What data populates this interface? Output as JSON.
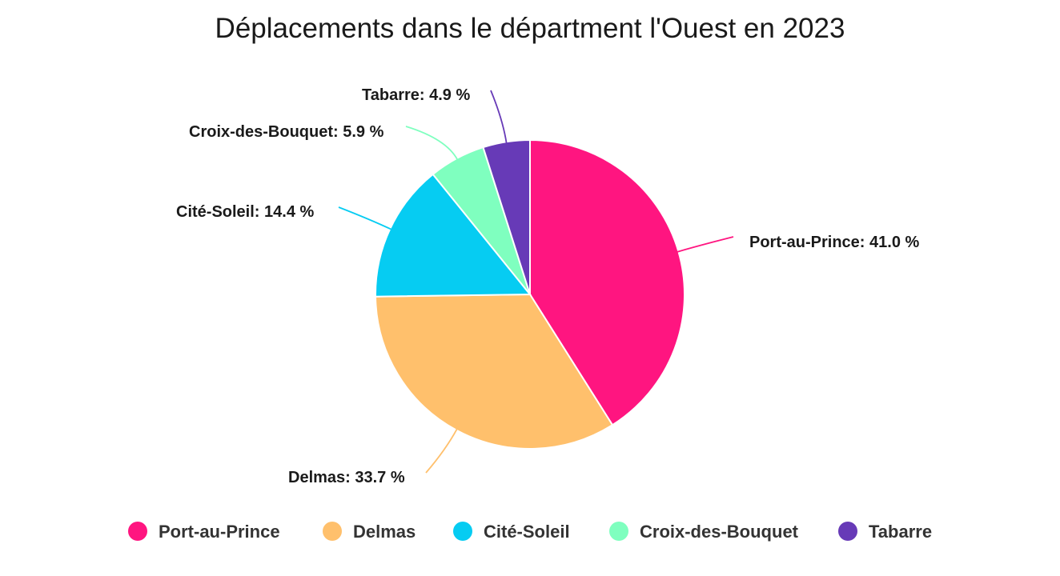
{
  "chart_data": {
    "type": "pie",
    "title": "Déplacements dans le départment l'Ouest en 2023",
    "categories": [
      "Port-au-Prince",
      "Delmas",
      "Cité-Soleil",
      "Croix-des-Bouquet",
      "Tabarre"
    ],
    "values": [
      41.0,
      33.7,
      14.4,
      5.9,
      4.9
    ],
    "data_labels": [
      "Port-au-Prince: 41.0 %",
      "Delmas: 33.7 %",
      "Cité-Soleil: 14.4 %",
      "Croix-des-Bouquet: 5.9 %",
      "Tabarre: 4.9 %"
    ],
    "colors": [
      "#ff1580",
      "#ffc06c",
      "#06ccf2",
      "#7fffbf",
      "#673ab7"
    ],
    "start_angle": "12 o'clock, clockwise",
    "legend_position": "bottom"
  }
}
